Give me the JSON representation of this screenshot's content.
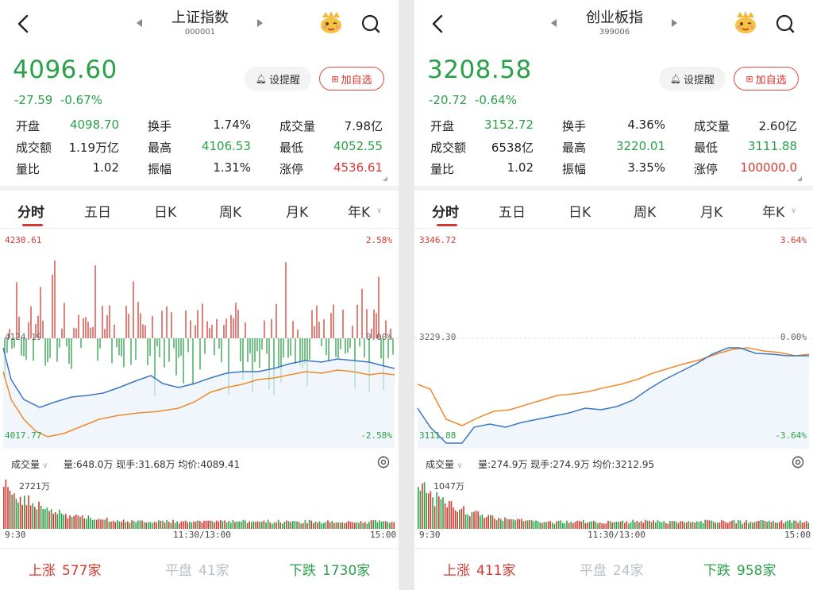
{
  "panels": [
    {
      "title": "上证指数",
      "code": "000001",
      "price": "4096.60",
      "change": "-27.59",
      "change_pct": "-0.67%",
      "alert_label": "设提醒",
      "fav_label": "加自选",
      "stats": [
        {
          "label": "开盘",
          "value": "4098.70",
          "color": "green"
        },
        {
          "label": "换手",
          "value": "1.74%",
          "color": "black"
        },
        {
          "label": "成交量",
          "value": "7.98亿",
          "color": "black"
        },
        {
          "label": "成交额",
          "value": "1.19万亿",
          "color": "black"
        },
        {
          "label": "最高",
          "value": "4106.53",
          "color": "green"
        },
        {
          "label": "最低",
          "value": "4052.55",
          "color": "green"
        },
        {
          "label": "量比",
          "value": "1.02",
          "color": "black"
        },
        {
          "label": "振幅",
          "value": "1.31%",
          "color": "black"
        },
        {
          "label": "涨停",
          "value": "4536.61",
          "color": "red"
        }
      ],
      "tabs": [
        "分时",
        "五日",
        "日K",
        "周K",
        "月K",
        "年K"
      ],
      "chart_labels": {
        "top_price": "4230.61",
        "top_pct": "2.58%",
        "mid_price": "4124.19",
        "mid_pct": "0.00%",
        "bottom_price": "4017.77",
        "bottom_pct": "-2.58%"
      },
      "volume_selector": "成交量",
      "volume_info": "量:648.0万  现手:31.68万  均价:4089.41",
      "volume_max": "2721万",
      "time_axis": [
        "9:30",
        "11:30/13:00",
        "15:00"
      ],
      "footer": [
        {
          "label": "上涨",
          "value": "577家",
          "color": "red"
        },
        {
          "label": "平盘",
          "value": "41家",
          "color": "gray"
        },
        {
          "label": "下跌",
          "value": "1730家",
          "color": "green"
        }
      ],
      "colors": {
        "up": "#d33a2f",
        "down": "#2aa148",
        "price_line": "#3a78c4",
        "avg_line": "#ef8a2a"
      }
    },
    {
      "title": "创业板指",
      "code": "399006",
      "price": "3208.58",
      "change": "-20.72",
      "change_pct": "-0.64%",
      "alert_label": "设提醒",
      "fav_label": "加自选",
      "stats": [
        {
          "label": "开盘",
          "value": "3152.72",
          "color": "green"
        },
        {
          "label": "换手",
          "value": "4.36%",
          "color": "black"
        },
        {
          "label": "成交量",
          "value": "2.60亿",
          "color": "black"
        },
        {
          "label": "成交额",
          "value": "6538亿",
          "color": "black"
        },
        {
          "label": "最高",
          "value": "3220.01",
          "color": "green"
        },
        {
          "label": "最低",
          "value": "3111.88",
          "color": "green"
        },
        {
          "label": "量比",
          "value": "1.02",
          "color": "black"
        },
        {
          "label": "振幅",
          "value": "3.35%",
          "color": "black"
        },
        {
          "label": "涨停",
          "value": "100000.0",
          "color": "red"
        }
      ],
      "tabs": [
        "分时",
        "五日",
        "日K",
        "周K",
        "月K",
        "年K"
      ],
      "chart_labels": {
        "top_price": "3346.72",
        "top_pct": "3.64%",
        "mid_price": "3229.30",
        "mid_pct": "0.00%",
        "bottom_price": "3111.88",
        "bottom_pct": "-3.64%"
      },
      "volume_selector": "成交量",
      "volume_info": "量:274.9万  现手:274.9万  均价:3212.95",
      "volume_max": "1047万",
      "time_axis": [
        "9:30",
        "11:30/13:00",
        "15:00"
      ],
      "footer": [
        {
          "label": "上涨",
          "value": "411家",
          "color": "red"
        },
        {
          "label": "平盘",
          "value": "24家",
          "color": "gray"
        },
        {
          "label": "下跌",
          "value": "958家",
          "color": "green"
        }
      ],
      "colors": {
        "up": "#d33a2f",
        "down": "#2aa148",
        "price_line": "#3a78c4",
        "avg_line": "#ef8a2a"
      }
    }
  ],
  "icons": [
    "back-arrow-icon",
    "prev-triangle-icon",
    "next-triangle-icon",
    "mascot-icon",
    "search-icon",
    "bell-icon",
    "add-box-icon",
    "dropdown-chevron-icon",
    "settings-gear-icon"
  ]
}
